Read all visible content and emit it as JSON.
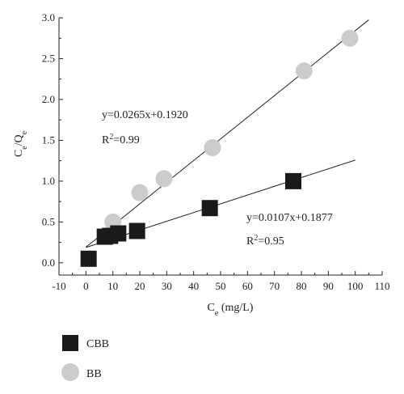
{
  "chart_data": {
    "type": "scatter",
    "xlim": [
      -10,
      110
    ],
    "ylim": [
      -0.15,
      3.0
    ],
    "x_ticks": [
      "-10",
      "0",
      "10",
      "20",
      "30",
      "40",
      "50",
      "60",
      "70",
      "80",
      "90",
      "100",
      "110"
    ],
    "y_ticks": [
      "0.0",
      "0.5",
      "1.0",
      "1.5",
      "2.0",
      "2.5",
      "3.0"
    ],
    "ylabel_main": "C",
    "ylabel_sub1": "e",
    "ylabel_mid": "/Q",
    "ylabel_sub2": "e",
    "xlabel_main": "C",
    "xlabel_sub": "e",
    "xlabel_unit": " (mg/L)",
    "grid": false,
    "legend_position": "bottom-left",
    "series": [
      {
        "name": "CBB",
        "marker": "square",
        "color": "#1a1a1a",
        "x": [
          1,
          7,
          9,
          12,
          19,
          46,
          77
        ],
        "y": [
          0.05,
          0.32,
          0.33,
          0.36,
          0.39,
          0.67,
          1.0
        ],
        "fit": {
          "equation": "y=0.0107x+0.1877",
          "r2_prefix": "R",
          "r2_exp": "2",
          "r2_value": "=0.95",
          "slope": 0.0107,
          "intercept": 0.1877,
          "x_range": [
            0,
            100
          ]
        }
      },
      {
        "name": "BB",
        "marker": "circle",
        "color": "#cccccc",
        "x": [
          10,
          20,
          29,
          47,
          81,
          98
        ],
        "y": [
          0.5,
          0.86,
          1.03,
          1.41,
          2.35,
          2.75
        ],
        "fit": {
          "equation": "y=0.0265x+0.1920",
          "r2_prefix": "R",
          "r2_exp": "2",
          "r2_value": "=0.99",
          "slope": 0.0265,
          "intercept": 0.192,
          "x_range": [
            0,
            105
          ]
        }
      }
    ]
  }
}
